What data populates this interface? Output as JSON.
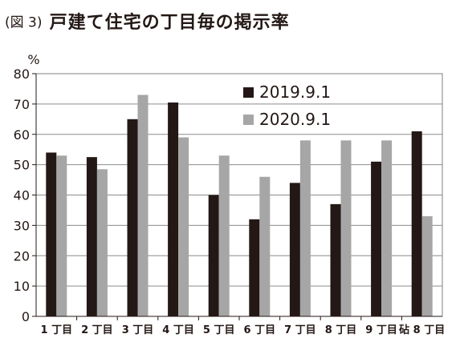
{
  "header": {
    "fig_label": "(図 3)",
    "title": "戸建て住宅の丁目毎の掲示率"
  },
  "chart_data": {
    "type": "bar",
    "ylabel": "%",
    "ylim": [
      0,
      80
    ],
    "yticks": [
      0,
      10,
      20,
      30,
      40,
      50,
      60,
      70,
      80
    ],
    "grid": true,
    "legend_position": "top-center",
    "categories": [
      "1 丁目",
      "2 丁目",
      "3 丁目",
      "4 丁目",
      "5 丁目",
      "6 丁目",
      "7 丁目",
      "8 丁目",
      "9 丁目",
      "砧 8 丁目"
    ],
    "series": [
      {
        "name": "2019.9.1",
        "color": "#231815",
        "values": [
          54,
          52.5,
          65,
          70.5,
          40,
          32,
          44,
          37,
          51,
          61
        ]
      },
      {
        "name": "2020.9.1",
        "color": "#a6a6a6",
        "values": [
          53,
          48.5,
          73,
          59,
          53,
          46,
          58,
          58,
          58,
          33
        ]
      }
    ]
  }
}
